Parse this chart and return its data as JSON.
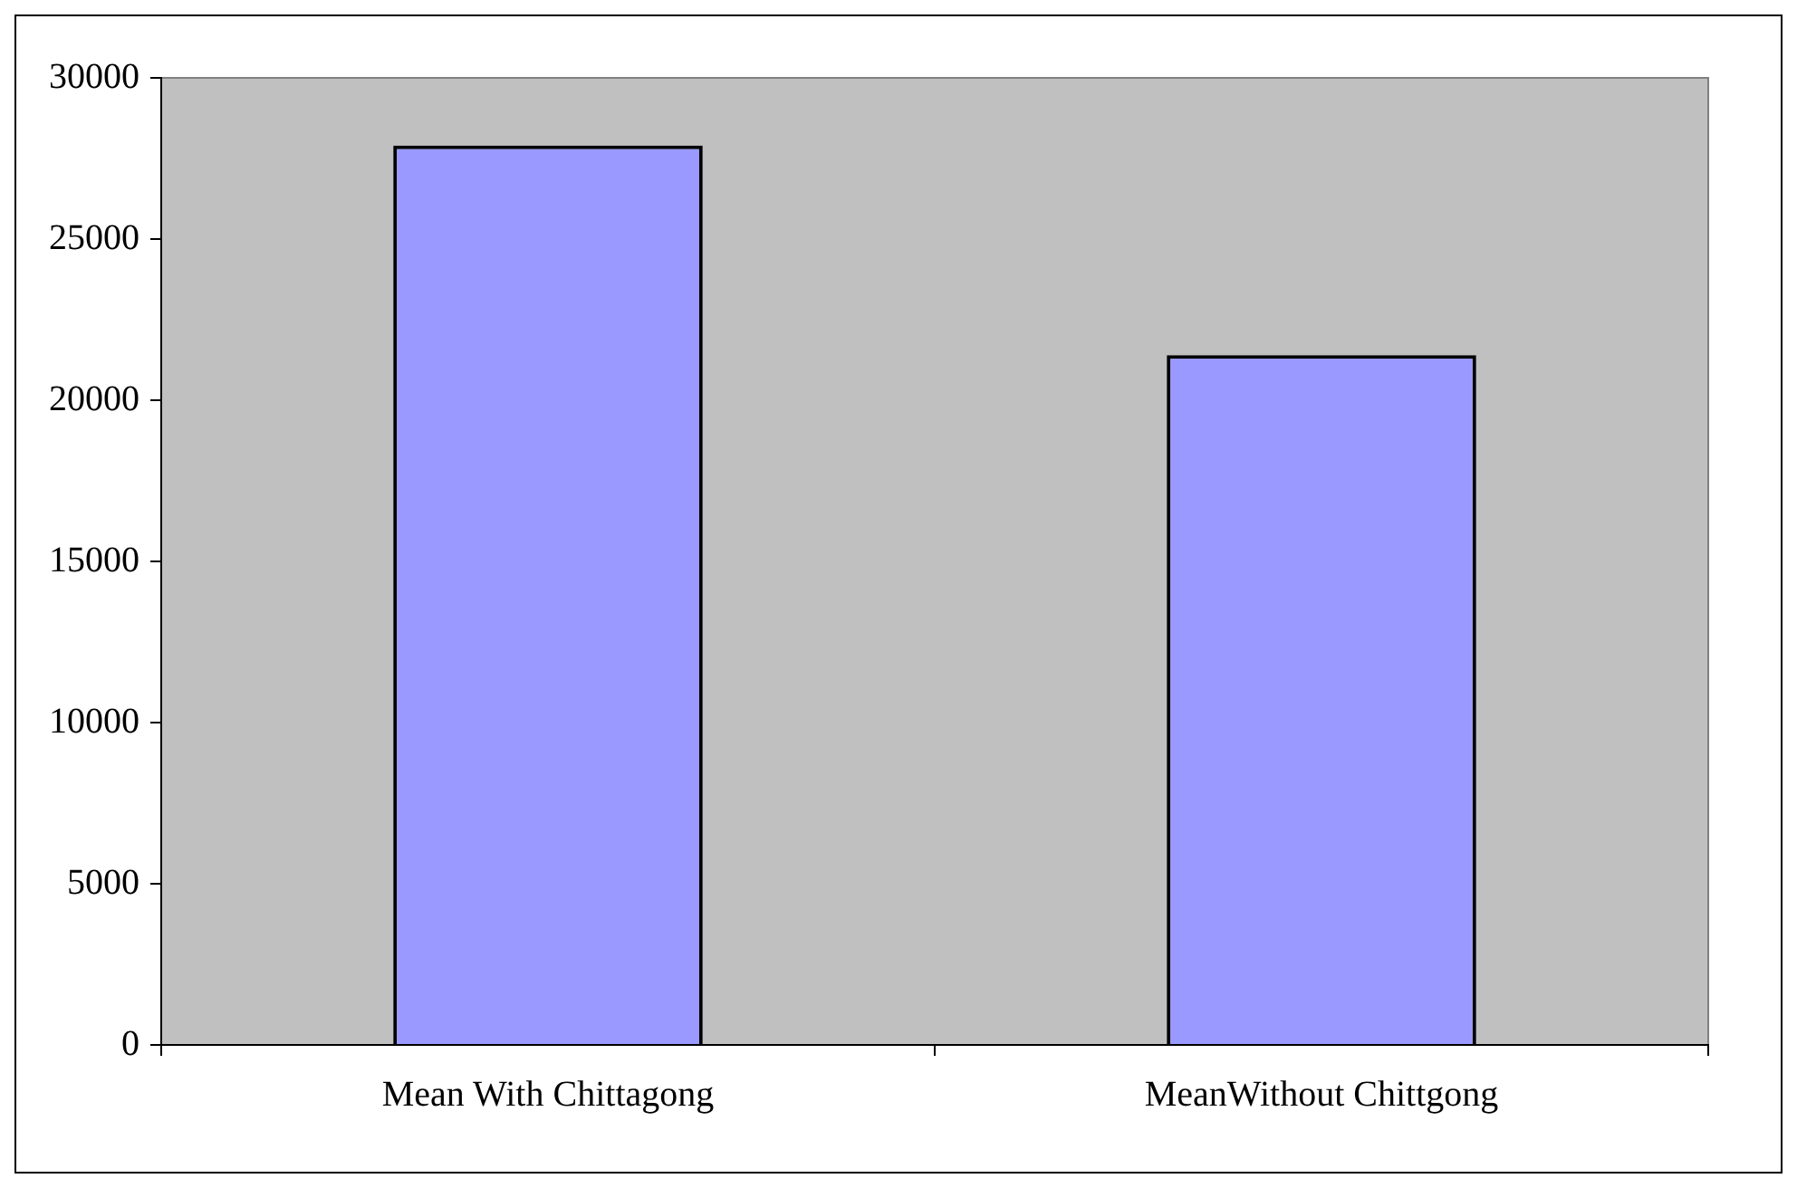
{
  "chart_data": {
    "type": "bar",
    "categories": [
      "Mean With Chittagong",
      "MeanWithout Chittgong"
    ],
    "values": [
      27900,
      21400
    ],
    "color": "#9999ff",
    "ylim": [
      0,
      30000
    ],
    "yticks": [
      0,
      5000,
      10000,
      15000,
      20000,
      25000,
      30000
    ],
    "grid": false,
    "legend": false
  }
}
